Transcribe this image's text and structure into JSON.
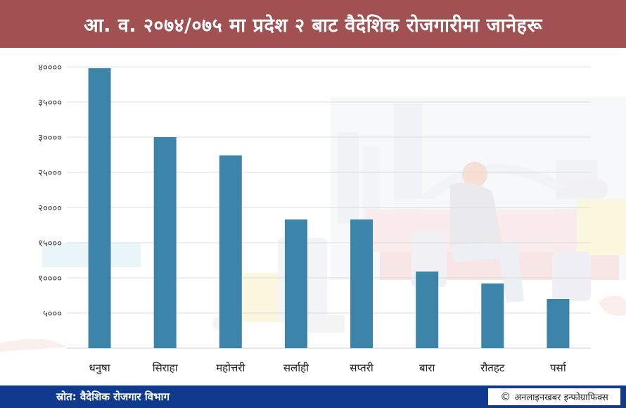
{
  "header": {
    "title": "आ. व. २०७४/०७५ मा प्रदेश २ बाट वैदेशिक रोजगारीमा जानेहरू"
  },
  "footer": {
    "source": "स्रोत: वैदेशिक रोजगार विभाग",
    "credit_symbol": "©",
    "credit": "अनलाइनखबर इन्फोग्राफिक्स"
  },
  "colors": {
    "header_bg": "#a25152",
    "bar": "#3d84ab",
    "footer_bg": "#0f3a8e"
  },
  "chart_data": {
    "type": "bar",
    "title": "आ. व. २०७४/०७५ मा प्रदेश २ बाट वैदेशिक रोजगारीमा जानेहरू",
    "categories": [
      "धनुषा",
      "सिराहा",
      "महोत्तरी",
      "सर्लाही",
      "सप्तरी",
      "बारा",
      "रौतहट",
      "पर्सा"
    ],
    "values": [
      39800,
      30000,
      27400,
      18300,
      18300,
      10900,
      9200,
      7000
    ],
    "ylim": [
      0,
      40000
    ],
    "yticks": [
      5000,
      10000,
      15000,
      20000,
      25000,
      30000,
      35000,
      40000
    ],
    "ytick_labels": [
      "५०००",
      "१००००",
      "१५०००",
      "२००००",
      "२५०००",
      "३००००",
      "३५०००",
      "४००००"
    ],
    "xlabel": "",
    "ylabel": "",
    "grid": true,
    "legend": "none"
  }
}
